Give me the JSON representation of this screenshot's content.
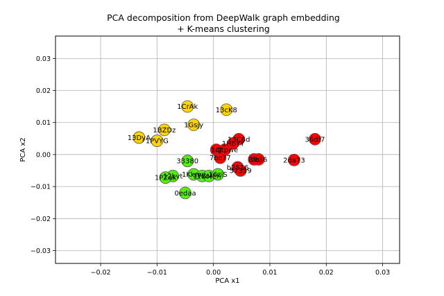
{
  "chart_data": {
    "type": "scatter",
    "title": "PCA decomposition from DeepWalk graph embedding",
    "subtitle": "+ K-means clustering",
    "xlabel": "PCA x1",
    "ylabel": "PCA x2",
    "xlim": [
      -0.028,
      0.033
    ],
    "ylim": [
      -0.034,
      0.037
    ],
    "xticks": [
      -0.02,
      -0.01,
      0.0,
      0.01,
      0.02,
      0.03
    ],
    "xtick_labels": [
      "−0.02",
      "−0.01",
      "0.00",
      "0.01",
      "0.02",
      "0.03"
    ],
    "yticks": [
      -0.03,
      -0.02,
      -0.01,
      0.0,
      0.01,
      0.02,
      0.03
    ],
    "ytick_labels": [
      "−0.03",
      "−0.02",
      "−0.01",
      "0.00",
      "0.01",
      "0.02",
      "0.03"
    ],
    "grid": true,
    "clusters": [
      {
        "color": "#ffd400",
        "points": [
          {
            "label": "1CrAk",
            "x": -0.0046,
            "y": 0.015
          },
          {
            "label": "13cK8",
            "x": 0.0023,
            "y": 0.014
          },
          {
            "label": "1Gsjy",
            "x": -0.0035,
            "y": 0.0093
          },
          {
            "label": "1BZDz",
            "x": -0.0087,
            "y": 0.0077
          },
          {
            "label": "13DyA",
            "x": -0.0132,
            "y": 0.0053
          },
          {
            "label": "1PVYG",
            "x": -0.01,
            "y": 0.0043
          }
        ]
      },
      {
        "color": "#ff0000",
        "points": [
          {
            "label": "36df7",
            "x": 0.018,
            "y": 0.0048
          },
          {
            "label": "13C6d",
            "x": 0.0045,
            "y": 0.0048
          },
          {
            "label": "1HbYY",
            "x": 0.0035,
            "y": 0.0035
          },
          {
            "label": "1Qtpwe",
            "x": 0.002,
            "y": 0.0015
          },
          {
            "label": "1dJ",
            "x": 0.0005,
            "y": 0.0015
          },
          {
            "label": "7bc77",
            "x": 0.0012,
            "y": -0.001
          },
          {
            "label": "8fb",
            "x": 0.0072,
            "y": -0.0015
          },
          {
            "label": "1e36",
            "x": 0.008,
            "y": -0.0015
          },
          {
            "label": "2da73",
            "x": 0.0143,
            "y": -0.0017
          },
          {
            "label": "b2516",
            "x": 0.0043,
            "y": -0.004
          },
          {
            "label": "57359",
            "x": 0.0048,
            "y": -0.005
          }
        ]
      },
      {
        "color": "#55ee11",
        "points": [
          {
            "label": "33380",
            "x": -0.0046,
            "y": -0.002
          },
          {
            "label": "1Kkmv",
            "x": -0.0035,
            "y": -0.0062
          },
          {
            "label": "1Yxol",
            "x": -0.002,
            "y": -0.0067
          },
          {
            "label": "1GMEh",
            "x": -0.0008,
            "y": -0.0067
          },
          {
            "label": "16ziS",
            "x": 0.0008,
            "y": -0.0062
          },
          {
            "label": "12kvt",
            "x": -0.0072,
            "y": -0.0067
          },
          {
            "label": "1PZak",
            "x": -0.0085,
            "y": -0.0072
          },
          {
            "label": "0edaa",
            "x": -0.005,
            "y": -0.012
          }
        ]
      }
    ]
  }
}
